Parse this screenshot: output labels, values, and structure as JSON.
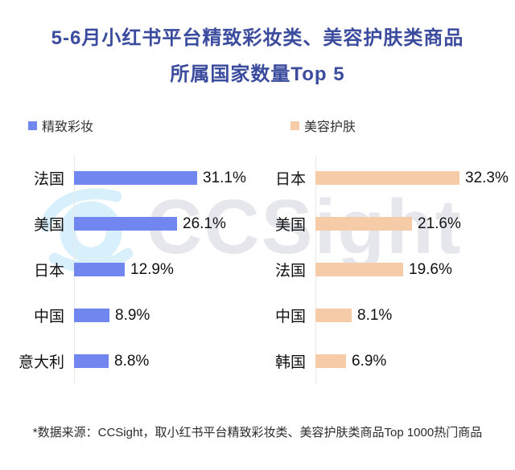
{
  "title": {
    "line1": "5-6月小红书平台精致彩妆类、美容护肤类商品",
    "line2": "所属国家数量Top 5"
  },
  "colors": {
    "title_text": "#3B4B9D",
    "makeup_bar": "#7186EF",
    "skincare_bar": "#F6CBA8",
    "axis_line": "#E8E8E8",
    "watermark_text": "#E6E7ED",
    "watermark_logo": "#D8F0FB"
  },
  "legends": [
    {
      "label": "精致彩妆",
      "color": "#7186EF"
    },
    {
      "label": "美容护肤",
      "color": "#F6CBA8"
    }
  ],
  "watermark": {
    "text": "CCSight",
    "logo": "ccsight-eye-logo"
  },
  "source_note": "*数据来源：CCSight，取小红书平台精致彩妆类、美容护肤类商品Top 1000热门商品",
  "chart_data": [
    {
      "type": "bar",
      "orientation": "horizontal",
      "series_name": "精致彩妆",
      "color": "#7186EF",
      "categories": [
        "法国",
        "美国",
        "日本",
        "中国",
        "意大利"
      ],
      "values": [
        31.1,
        26.1,
        12.9,
        8.9,
        8.8
      ],
      "value_labels": [
        "31.1%",
        "26.1%",
        "12.9%",
        "8.9%",
        "8.8%"
      ],
      "unit": "%",
      "xlim": [
        0,
        35
      ],
      "grid": false,
      "legend_position": "top-left"
    },
    {
      "type": "bar",
      "orientation": "horizontal",
      "series_name": "美容护肤",
      "color": "#F6CBA8",
      "categories": [
        "日本",
        "美国",
        "法国",
        "中国",
        "韩国"
      ],
      "values": [
        32.3,
        21.6,
        19.6,
        8.1,
        6.9
      ],
      "value_labels": [
        "32.3%",
        "21.6%",
        "19.6%",
        "8.1%",
        "6.9%"
      ],
      "unit": "%",
      "xlim": [
        0,
        35
      ],
      "grid": false,
      "legend_position": "top-left"
    }
  ]
}
